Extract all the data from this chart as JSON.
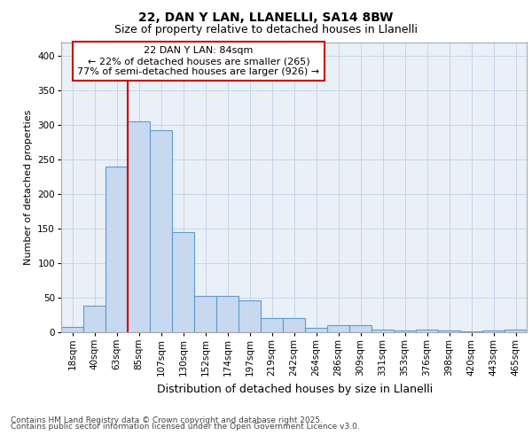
{
  "title1": "22, DAN Y LAN, LLANELLI, SA14 8BW",
  "title2": "Size of property relative to detached houses in Llanelli",
  "xlabel": "Distribution of detached houses by size in Llanelli",
  "ylabel": "Number of detached properties",
  "bin_labels": [
    "18sqm",
    "40sqm",
    "63sqm",
    "85sqm",
    "107sqm",
    "130sqm",
    "152sqm",
    "174sqm",
    "197sqm",
    "219sqm",
    "242sqm",
    "264sqm",
    "286sqm",
    "309sqm",
    "331sqm",
    "353sqm",
    "376sqm",
    "398sqm",
    "420sqm",
    "443sqm",
    "465sqm"
  ],
  "values": [
    8,
    38,
    240,
    305,
    292,
    145,
    53,
    52,
    46,
    20,
    20,
    7,
    10,
    10,
    4,
    2,
    4,
    2,
    1,
    2,
    4
  ],
  "bar_color": "#c8d9ef",
  "bar_edge_color": "#5a9bd4",
  "bar_linewidth": 0.8,
  "vline_color": "#cc0000",
  "vline_x_index": 3,
  "annotation_line1": "22 DAN Y LAN: 84sqm",
  "annotation_line2": "← 22% of detached houses are smaller (265)",
  "annotation_line3": "77% of semi-detached houses are larger (926) →",
  "annotation_box_facecolor": "#ffffff",
  "annotation_box_edgecolor": "#cc0000",
  "grid_color": "#c5d5e8",
  "background_color": "#eaf0f8",
  "ylim": [
    0,
    420
  ],
  "yticks": [
    0,
    50,
    100,
    150,
    200,
    250,
    300,
    350,
    400
  ],
  "title1_fontsize": 10,
  "title2_fontsize": 9,
  "xlabel_fontsize": 9,
  "ylabel_fontsize": 8,
  "tick_fontsize": 7.5,
  "footer_line1": "Contains HM Land Registry data © Crown copyright and database right 2025.",
  "footer_line2": "Contains public sector information licensed under the Open Government Licence v3.0.",
  "footer_fontsize": 6.5
}
